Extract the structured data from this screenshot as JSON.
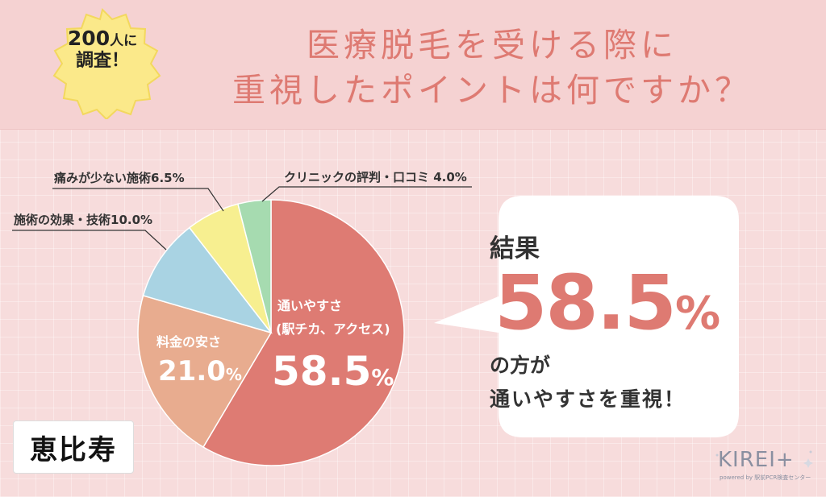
{
  "badge": {
    "count": "200",
    "count_suffix": "人に",
    "line2": "調査！"
  },
  "title": {
    "line1": "医療脱毛を受ける際に",
    "line2": "重視したポイントは何ですか？"
  },
  "colors": {
    "title": "#de7a72",
    "accent": "#de7a72",
    "badge": "#fbe98a",
    "slices": [
      "#de7b73",
      "#e8ac8f",
      "#a9d3e3",
      "#f7ef90",
      "#a6dbb0"
    ]
  },
  "chart_data": {
    "type": "pie",
    "title": "医療脱毛を受ける際に重視したポイントは何ですか？",
    "unit": "%",
    "slices": [
      {
        "label": "通いやすさ",
        "label2": "(駅チカ、アクセス)",
        "value": 58.5,
        "display": "58.5",
        "pct": "%"
      },
      {
        "label": "料金の安さ",
        "value": 21.0,
        "display": "21.0",
        "pct": "%"
      },
      {
        "label": "施術の効果・技術",
        "value": 10.0,
        "display": "施術の効果・技術10.0%"
      },
      {
        "label": "痛みが少ない施術",
        "value": 6.5,
        "display": "痛みが少ない施術6.5%"
      },
      {
        "label": "クリニックの評判・口コミ",
        "value": 4.0,
        "display": "クリニックの評判・口コミ 4.0%"
      }
    ]
  },
  "result": {
    "label": "結果",
    "value": "58.5",
    "pct": "%",
    "line1": "の方が",
    "line2": "通いやすさを重視！"
  },
  "location": "恵比寿",
  "logo": {
    "name": "KIREI+",
    "sub": "powered by 駅前PCR検査センター"
  }
}
